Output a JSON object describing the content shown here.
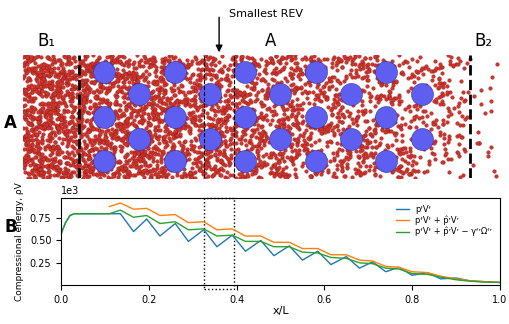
{
  "figure": {
    "panel_a": {
      "label": "A",
      "region_labels": [
        "B₁",
        "A",
        "B₂"
      ],
      "callout": "Smallest REV"
    },
    "panel_b": {
      "label": "B"
    }
  },
  "chart_data": {
    "type": "line",
    "y_label": "Compressional energy, ρV",
    "x_label": "x/L",
    "y_offset_label": "1e3",
    "x": [
      0.0,
      0.01,
      0.02,
      0.03,
      0.06,
      0.09,
      0.11,
      0.135,
      0.165,
      0.195,
      0.225,
      0.26,
      0.29,
      0.325,
      0.355,
      0.39,
      0.42,
      0.455,
      0.485,
      0.52,
      0.55,
      0.585,
      0.615,
      0.65,
      0.68,
      0.71,
      0.74,
      0.77,
      0.8,
      0.835,
      0.865,
      0.9,
      0.93,
      0.96,
      1.0
    ],
    "series": [
      {
        "name": "pᶠVᶠ",
        "color": "#1f77b4",
        "values": [
          0.58,
          0.7,
          0.78,
          0.8,
          0.8,
          0.8,
          0.8,
          0.8,
          0.6,
          0.74,
          0.55,
          0.69,
          0.49,
          0.62,
          0.43,
          0.56,
          0.38,
          0.5,
          0.33,
          0.44,
          0.28,
          0.38,
          0.23,
          0.32,
          0.19,
          0.26,
          0.15,
          0.2,
          0.11,
          0.14,
          0.07,
          0.08,
          0.05,
          0.04,
          0.03
        ]
      },
      {
        "name": "pᶠVᶠ + p̂ʳVʳ",
        "color": "#ff7f0e",
        "values": [
          null,
          null,
          null,
          null,
          null,
          null,
          0.88,
          0.92,
          0.85,
          0.86,
          0.78,
          0.79,
          0.7,
          0.71,
          0.62,
          0.63,
          0.55,
          0.55,
          0.48,
          0.48,
          0.41,
          0.41,
          0.34,
          0.34,
          0.28,
          0.27,
          0.21,
          0.2,
          0.15,
          0.14,
          0.1,
          0.07,
          0.05,
          0.04,
          0.03
        ]
      },
      {
        "name": "pᶠVᶠ + p̂ʳVʳ − γᶠʳΩᶠʳ",
        "color": "#2ca02c",
        "values": [
          0.58,
          0.7,
          0.78,
          0.8,
          0.8,
          0.8,
          0.8,
          0.84,
          0.76,
          0.78,
          0.69,
          0.71,
          0.62,
          0.63,
          0.55,
          0.56,
          0.49,
          0.49,
          0.43,
          0.43,
          0.37,
          0.36,
          0.31,
          0.3,
          0.25,
          0.24,
          0.19,
          0.18,
          0.13,
          0.12,
          0.09,
          0.06,
          0.045,
          0.035,
          0.03
        ]
      }
    ],
    "xlim": [
      0.0,
      1.0
    ],
    "xticks": [
      0.0,
      0.2,
      0.4,
      0.6,
      0.8,
      1.0
    ],
    "ylim": [
      0.0,
      0.98
    ],
    "yticks": [
      {
        "value": 0.25,
        "label": "0.25"
      },
      {
        "value": 0.5,
        "label": "0.50"
      },
      {
        "value": 0.75,
        "label": "0.75"
      }
    ],
    "highlight_x": [
      0.325,
      0.395
    ],
    "legend": "upper right",
    "grid": false
  }
}
